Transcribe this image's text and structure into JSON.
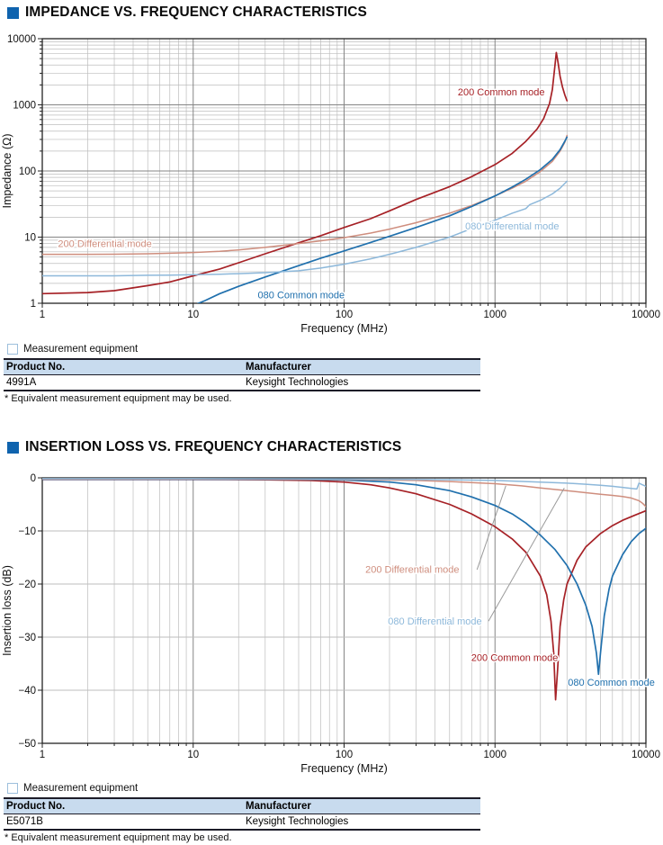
{
  "sections": [
    {
      "title": "IMPEDANCE VS. FREQUENCY CHARACTERISTICS"
    },
    {
      "title": "INSERTION LOSS VS. FREQUENCY CHARACTERISTICS"
    }
  ],
  "equipment_blocks": [
    {
      "label": "Measurement equipment",
      "headers": [
        "Product No.",
        "Manufacturer"
      ],
      "rows": [
        [
          "4991A",
          "Keysight Technologies"
        ]
      ],
      "footnote": "* Equivalent measurement equipment may be used."
    },
    {
      "label": "Measurement equipment",
      "headers": [
        "Product No.",
        "Manufacturer"
      ],
      "rows": [
        [
          "E5071B",
          "Keysight Technologies"
        ]
      ],
      "footnote": "* Equivalent measurement equipment may be used."
    }
  ],
  "colors": {
    "accent_blue": "#0f63ae",
    "table_header_bg": "#c8dbee",
    "grid_major": "#858585",
    "grid_minor": "#bdbdbd",
    "axis_border": "#222222",
    "leader_gray": "#9a9a9a",
    "red_200cm": "#a62126",
    "salmon_200dm": "#cf8e7e",
    "blue_080cm": "#2070ad",
    "lightblue_080dm": "#8db8da"
  },
  "chart_data": [
    {
      "type": "line",
      "title": "IMPEDANCE VS. FREQUENCY CHARACTERISTICS",
      "xlabel": "Frequency (MHz)",
      "ylabel": "Impedance (Ω)",
      "xscale": "log",
      "yscale": "log",
      "xlim": [
        1,
        10000
      ],
      "ylim": [
        1,
        10000
      ],
      "xtick_vals": [
        1,
        10,
        100,
        1000,
        10000
      ],
      "xtick_labels": [
        "1",
        "10",
        "100",
        "1000",
        "10000"
      ],
      "ytick_vals": [
        1,
        10,
        100,
        1000,
        10000
      ],
      "ytick_labels": [
        "1",
        "10",
        "100",
        "1000",
        "10000"
      ],
      "grid": {
        "x_major": "dark",
        "y_major": "dark",
        "minor": true
      },
      "legend_position": "inline-annotations",
      "series": [
        {
          "name": "200 Common mode",
          "color": "#a62126",
          "width": 1.7,
          "points": [
            [
              1,
              1.4
            ],
            [
              2,
              1.45
            ],
            [
              3,
              1.55
            ],
            [
              5,
              1.85
            ],
            [
              7,
              2.1
            ],
            [
              10,
              2.6
            ],
            [
              15,
              3.3
            ],
            [
              20,
              4.1
            ],
            [
              30,
              5.6
            ],
            [
              50,
              8.2
            ],
            [
              70,
              10.5
            ],
            [
              100,
              14
            ],
            [
              150,
              19
            ],
            [
              200,
              25
            ],
            [
              300,
              37
            ],
            [
              500,
              58
            ],
            [
              700,
              82
            ],
            [
              1000,
              125
            ],
            [
              1300,
              185
            ],
            [
              1600,
              280
            ],
            [
              1900,
              430
            ],
            [
              2100,
              620
            ],
            [
              2300,
              1050
            ],
            [
              2400,
              1700
            ],
            [
              2480,
              3400
            ],
            [
              2550,
              6200
            ],
            [
              2620,
              4300
            ],
            [
              2700,
              2700
            ],
            [
              2800,
              1850
            ],
            [
              2900,
              1420
            ],
            [
              3000,
              1150
            ]
          ]
        },
        {
          "name": "200 Differential mode",
          "color": "#cf8e7e",
          "width": 1.5,
          "points": [
            [
              1,
              5.5
            ],
            [
              2,
              5.5
            ],
            [
              3,
              5.52
            ],
            [
              5,
              5.6
            ],
            [
              7,
              5.7
            ],
            [
              10,
              5.85
            ],
            [
              15,
              6.1
            ],
            [
              20,
              6.4
            ],
            [
              30,
              7
            ],
            [
              50,
              8
            ],
            [
              70,
              8.8
            ],
            [
              100,
              9.8
            ],
            [
              150,
              11.5
            ],
            [
              200,
              13.2
            ],
            [
              300,
              16.5
            ],
            [
              500,
              23
            ],
            [
              700,
              30
            ],
            [
              1000,
              42
            ],
            [
              1300,
              55
            ],
            [
              1600,
              70
            ],
            [
              2000,
              98
            ],
            [
              2400,
              140
            ],
            [
              2700,
              200
            ],
            [
              2900,
              270
            ],
            [
              3000,
              345
            ]
          ]
        },
        {
          "name": "080 Common mode",
          "color": "#2070ad",
          "width": 1.7,
          "points": [
            [
              10.5,
              0.97
            ],
            [
              12,
              1.1
            ],
            [
              15,
              1.4
            ],
            [
              20,
              1.8
            ],
            [
              30,
              2.5
            ],
            [
              50,
              3.7
            ],
            [
              70,
              4.8
            ],
            [
              100,
              6.2
            ],
            [
              150,
              8.3
            ],
            [
              200,
              10.3
            ],
            [
              300,
              14
            ],
            [
              500,
              21
            ],
            [
              700,
              29
            ],
            [
              1000,
              42
            ],
            [
              1300,
              57
            ],
            [
              1600,
              75
            ],
            [
              2000,
              105
            ],
            [
              2400,
              150
            ],
            [
              2700,
              210
            ],
            [
              2900,
              280
            ],
            [
              3000,
              325
            ]
          ]
        },
        {
          "name": "080 Differential mode",
          "color": "#8db8da",
          "width": 1.5,
          "points": [
            [
              1,
              2.6
            ],
            [
              2,
              2.6
            ],
            [
              3,
              2.6
            ],
            [
              5,
              2.65
            ],
            [
              7,
              2.67
            ],
            [
              10,
              2.7
            ],
            [
              15,
              2.75
            ],
            [
              20,
              2.8
            ],
            [
              30,
              2.9
            ],
            [
              50,
              3.1
            ],
            [
              70,
              3.4
            ],
            [
              100,
              3.9
            ],
            [
              150,
              4.7
            ],
            [
              200,
              5.5
            ],
            [
              300,
              7
            ],
            [
              500,
              10
            ],
            [
              700,
              13.5
            ],
            [
              1000,
              18
            ],
            [
              1300,
              23
            ],
            [
              1600,
              27
            ],
            [
              1700,
              31
            ],
            [
              2000,
              36
            ],
            [
              2400,
              45
            ],
            [
              2700,
              55
            ],
            [
              3000,
              70
            ]
          ]
        }
      ],
      "annotations": [
        {
          "text": "200 Common mode",
          "x": 1100,
          "y": 1550,
          "anchor": "middle",
          "color": "#a62126"
        },
        {
          "text": "200 Differential mode",
          "x": 2.6,
          "y": 7.9,
          "anchor": "middle",
          "color": "#cf8e7e"
        },
        {
          "text": "080 Differential mode",
          "x": 1300,
          "y": 14.5,
          "anchor": "middle",
          "color": "#8db8da"
        },
        {
          "text": "080 Common mode",
          "x": 52,
          "y": 1.32,
          "anchor": "middle",
          "color": "#2070ad"
        }
      ]
    },
    {
      "type": "line",
      "title": "INSERTION LOSS VS. FREQUENCY CHARACTERISTICS",
      "xlabel": "Frequency (MHz)",
      "ylabel": "Insertion loss (dB)",
      "xscale": "log",
      "yscale": "linear",
      "xlim": [
        1,
        10000
      ],
      "ylim": [
        0,
        -50
      ],
      "xtick_vals": [
        1,
        10,
        100,
        1000,
        10000
      ],
      "xtick_labels": [
        "1",
        "10",
        "100",
        "1000",
        "10000"
      ],
      "ytick_vals": [
        0,
        -10,
        -20,
        -30,
        -40,
        -50
      ],
      "ytick_labels": [
        "0",
        "−10",
        "−20",
        "−30",
        "−40",
        "−50"
      ],
      "grid": {
        "x_major": "dark",
        "y_major": "light",
        "minor": true
      },
      "legend_position": "inline-annotations",
      "series": [
        {
          "name": "200 Common mode",
          "color": "#a62126",
          "width": 1.7,
          "points": [
            [
              1,
              -0.3
            ],
            [
              10,
              -0.3
            ],
            [
              30,
              -0.35
            ],
            [
              60,
              -0.5
            ],
            [
              100,
              -0.8
            ],
            [
              150,
              -1.3
            ],
            [
              200,
              -1.9
            ],
            [
              300,
              -3
            ],
            [
              500,
              -5
            ],
            [
              700,
              -6.8
            ],
            [
              1000,
              -9.2
            ],
            [
              1300,
              -11.5
            ],
            [
              1600,
              -14
            ],
            [
              2000,
              -18.5
            ],
            [
              2200,
              -22
            ],
            [
              2350,
              -27
            ],
            [
              2450,
              -33
            ],
            [
              2520,
              -41.8
            ],
            [
              2600,
              -36
            ],
            [
              2700,
              -28
            ],
            [
              2850,
              -23
            ],
            [
              3000,
              -20
            ],
            [
              3500,
              -15.5
            ],
            [
              4000,
              -13
            ],
            [
              5000,
              -10.5
            ],
            [
              6000,
              -9
            ],
            [
              7000,
              -8
            ],
            [
              8500,
              -7
            ],
            [
              10000,
              -6.2
            ]
          ]
        },
        {
          "name": "080 Common mode",
          "color": "#2070ad",
          "width": 1.7,
          "points": [
            [
              1,
              -0.25
            ],
            [
              10,
              -0.25
            ],
            [
              50,
              -0.3
            ],
            [
              100,
              -0.4
            ],
            [
              200,
              -0.8
            ],
            [
              300,
              -1.3
            ],
            [
              500,
              -2.4
            ],
            [
              700,
              -3.6
            ],
            [
              1000,
              -5.2
            ],
            [
              1300,
              -6.8
            ],
            [
              1600,
              -8.5
            ],
            [
              2000,
              -10.8
            ],
            [
              2500,
              -13.5
            ],
            [
              3000,
              -16.5
            ],
            [
              3500,
              -20
            ],
            [
              4000,
              -24
            ],
            [
              4400,
              -28
            ],
            [
              4700,
              -33
            ],
            [
              4850,
              -37
            ],
            [
              5000,
              -33
            ],
            [
              5300,
              -26
            ],
            [
              5700,
              -21
            ],
            [
              6000,
              -18.5
            ],
            [
              7000,
              -14.5
            ],
            [
              8000,
              -12
            ],
            [
              9000,
              -10.5
            ],
            [
              10000,
              -9.5
            ]
          ]
        },
        {
          "name": "200 Differential mode",
          "color": "#cf8e7e",
          "width": 1.5,
          "points": [
            [
              1,
              -0.2
            ],
            [
              10,
              -0.2
            ],
            [
              100,
              -0.3
            ],
            [
              300,
              -0.5
            ],
            [
              500,
              -0.7
            ],
            [
              1000,
              -1.1
            ],
            [
              1500,
              -1.5
            ],
            [
              2000,
              -1.9
            ],
            [
              3000,
              -2.4
            ],
            [
              4000,
              -2.8
            ],
            [
              5000,
              -3.1
            ],
            [
              6000,
              -3.3
            ],
            [
              7000,
              -3.5
            ],
            [
              8000,
              -3.8
            ],
            [
              9000,
              -4.3
            ],
            [
              9500,
              -4.8
            ],
            [
              10000,
              -5.4
            ]
          ]
        },
        {
          "name": "080 Differential mode",
          "color": "#8db8da",
          "width": 1.5,
          "points": [
            [
              1,
              -0.15
            ],
            [
              10,
              -0.15
            ],
            [
              100,
              -0.2
            ],
            [
              500,
              -0.35
            ],
            [
              1000,
              -0.5
            ],
            [
              2000,
              -0.8
            ],
            [
              3000,
              -1.0
            ],
            [
              4000,
              -1.2
            ],
            [
              5000,
              -1.4
            ],
            [
              6000,
              -1.6
            ],
            [
              7000,
              -1.8
            ],
            [
              8000,
              -2.0
            ],
            [
              8700,
              -2.1
            ],
            [
              9000,
              -1.0
            ],
            [
              9300,
              -1.2
            ],
            [
              10000,
              -1.6
            ]
          ]
        }
      ],
      "annotations": [
        {
          "text": "200 Differential mode",
          "x": 283,
          "y": -17.3,
          "anchor": "middle",
          "color": "#cf8e7e",
          "leader": {
            "x1": 760,
            "y1": -17.3,
            "x2": 1180,
            "y2": -1.5
          }
        },
        {
          "text": "080 Differential mode",
          "x": 400,
          "y": -27,
          "anchor": "middle",
          "color": "#8db8da",
          "leader": {
            "x1": 905,
            "y1": -27,
            "x2": 2880,
            "y2": -1.9
          }
        },
        {
          "text": "200 Common mode",
          "x": 1350,
          "y": -33.9,
          "anchor": "middle",
          "color": "#a62126"
        },
        {
          "text": "080 Common mode",
          "x": 5900,
          "y": -38.6,
          "anchor": "middle",
          "color": "#2070ad"
        }
      ]
    }
  ]
}
